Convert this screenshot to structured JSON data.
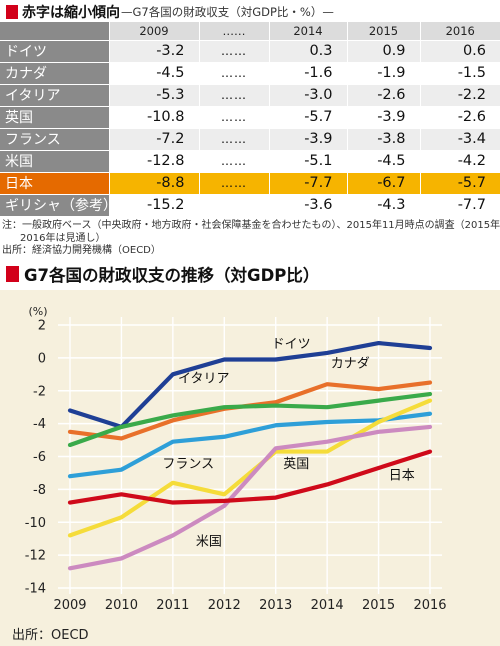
{
  "table": {
    "title": "赤字は縮小傾向",
    "subtitle": "—G7各国の財政収支（対GDP比・%）—",
    "headers": [
      "",
      "2009",
      "……",
      "2014",
      "2015",
      "2016"
    ],
    "rows": [
      {
        "name": "ドイツ",
        "values": [
          "-3.2",
          "……",
          "0.3",
          "0.9",
          "0.6"
        ]
      },
      {
        "name": "カナダ",
        "values": [
          "-4.5",
          "……",
          "-1.6",
          "-1.9",
          "-1.5"
        ]
      },
      {
        "name": "イタリア",
        "values": [
          "-5.3",
          "……",
          "-3.0",
          "-2.6",
          "-2.2"
        ]
      },
      {
        "name": "英国",
        "values": [
          "-10.8",
          "……",
          "-5.7",
          "-3.9",
          "-2.6"
        ]
      },
      {
        "name": "フランス",
        "values": [
          "-7.2",
          "……",
          "-3.9",
          "-3.8",
          "-3.4"
        ]
      },
      {
        "name": "米国",
        "values": [
          "-12.8",
          "……",
          "-5.1",
          "-4.5",
          "-4.2"
        ]
      },
      {
        "name": "日本",
        "values": [
          "-8.8",
          "……",
          "-7.7",
          "-6.7",
          "-5.7"
        ],
        "highlight": true
      },
      {
        "name": "ギリシャ（参考）",
        "values": [
          "-15.2",
          "",
          "-3.6",
          "-4.3",
          "-7.7"
        ]
      }
    ],
    "note_line1": "注：一般政府ベース（中央政府・地方政府・社会保障基金を合わせたもの）、2015年11月時点の調査（2015年、",
    "note_line2": "2016年は見通し）",
    "note_line3": "出所：経済協力開発機構（OECD）"
  },
  "chart_title": "G7各国の財政収支の推移（対GDP比）",
  "source": "出所：OECD",
  "colors": {
    "accent_red": "#d2001a",
    "table_name_bg": "#8a8a8a",
    "japan_name_bg": "#e56a00",
    "japan_value_bg": "#f6b400",
    "chart_bg": "#f6f0dd"
  },
  "chart_data": {
    "type": "line",
    "x": [
      2009,
      2010,
      2011,
      2012,
      2013,
      2014,
      2015,
      2016
    ],
    "ylabel": "(%)",
    "ylim": [
      -14,
      2
    ],
    "yticks": [
      2,
      0,
      -2,
      -4,
      -6,
      -8,
      -10,
      -12,
      -14
    ],
    "grid": true,
    "series": [
      {
        "name": "ドイツ",
        "color": "#1f3f95",
        "values": [
          -3.2,
          -4.2,
          -1.0,
          -0.1,
          -0.1,
          0.3,
          0.9,
          0.6
        ]
      },
      {
        "name": "カナダ",
        "color": "#e8702a",
        "values": [
          -4.5,
          -4.9,
          -3.8,
          -3.1,
          -2.7,
          -1.6,
          -1.9,
          -1.5
        ]
      },
      {
        "name": "イタリア",
        "color": "#3aaa4a",
        "values": [
          -5.3,
          -4.2,
          -3.5,
          -3.0,
          -2.9,
          -3.0,
          -2.6,
          -2.2
        ]
      },
      {
        "name": "フランス",
        "color": "#2e9fd8",
        "values": [
          -7.2,
          -6.8,
          -5.1,
          -4.8,
          -4.1,
          -3.9,
          -3.8,
          -3.4
        ]
      },
      {
        "name": "英国",
        "color": "#f5dc3a",
        "values": [
          -10.8,
          -9.7,
          -7.6,
          -8.3,
          -5.7,
          -5.7,
          -3.9,
          -2.6
        ]
      },
      {
        "name": "米国",
        "color": "#cc8ac0",
        "values": [
          -12.8,
          -12.2,
          -10.8,
          -9.0,
          -5.5,
          -5.1,
          -4.5,
          -4.2
        ]
      },
      {
        "name": "日本",
        "color": "#cf0a1a",
        "values": [
          -8.8,
          -8.3,
          -8.8,
          -8.7,
          -8.5,
          -7.7,
          -6.7,
          -5.7
        ]
      }
    ],
    "labels": [
      {
        "series": "ドイツ",
        "text": "ドイツ",
        "x": 2013.3,
        "y": 0.6
      },
      {
        "series": "カナダ",
        "text": "カナダ",
        "x": 2014.45,
        "y": -0.6
      },
      {
        "series": "イタリア",
        "text": "イタリア",
        "x": 2011.6,
        "y": -1.5
      },
      {
        "series": "フランス",
        "text": "フランス",
        "x": 2011.3,
        "y": -6.7
      },
      {
        "series": "英国",
        "text": "英国",
        "x": 2013.4,
        "y": -6.7
      },
      {
        "series": "米国",
        "text": "米国",
        "x": 2011.7,
        "y": -11.4
      },
      {
        "series": "日本",
        "text": "日本",
        "x": 2015.45,
        "y": -7.4
      }
    ]
  }
}
